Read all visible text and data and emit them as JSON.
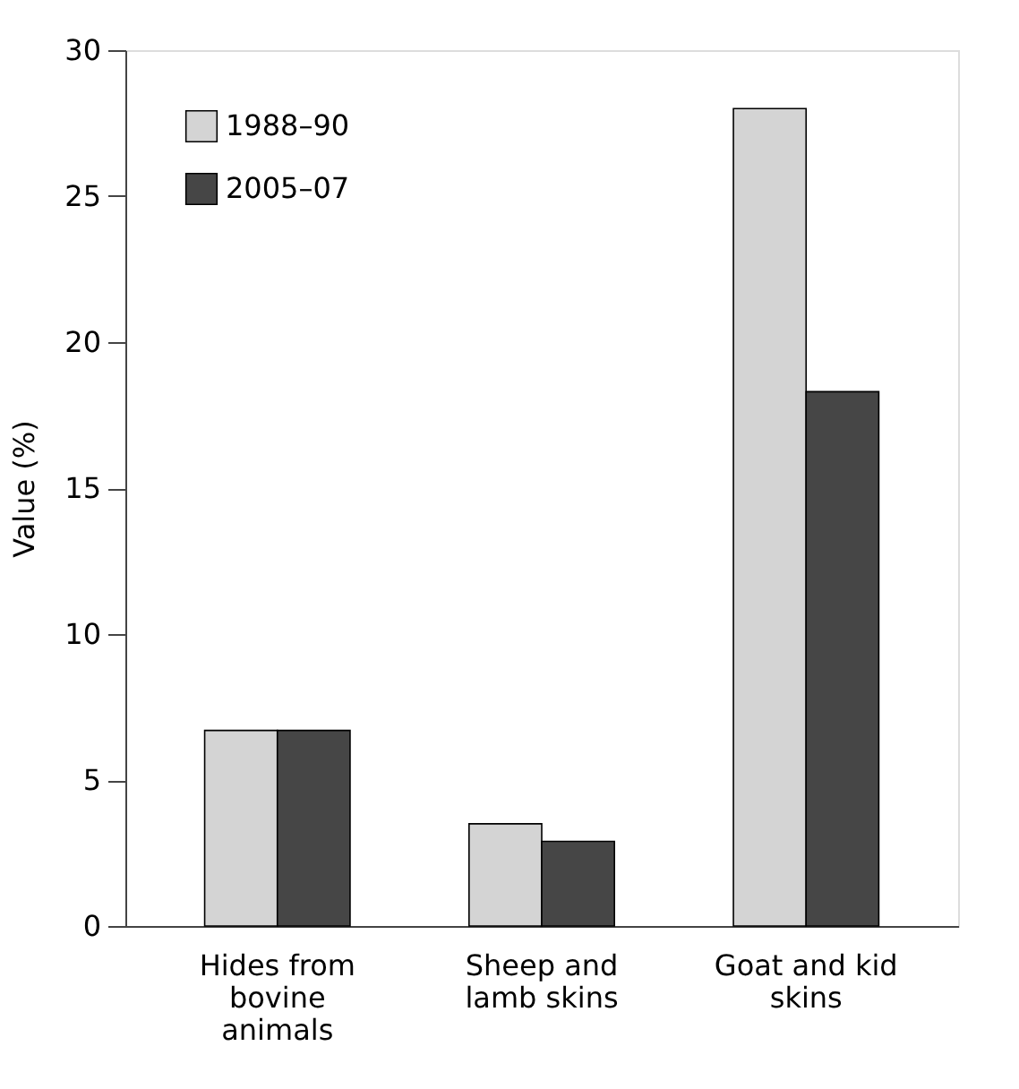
{
  "chart_data": {
    "type": "bar",
    "ylabel": "Value (%)",
    "categories": [
      "Hides from bovine animals",
      "Sheep and lamb skins",
      "Goat and kid skins"
    ],
    "series": [
      {
        "name": "1988–90",
        "color": "#d4d4d4",
        "values": [
          6.7,
          3.5,
          28.0
        ]
      },
      {
        "name": "2005–07",
        "color": "#464646",
        "values": [
          6.7,
          2.9,
          18.3
        ]
      }
    ],
    "ylim": [
      0,
      30
    ],
    "yticks": [
      0,
      5,
      10,
      15,
      20,
      25,
      30
    ],
    "grid": false,
    "legend": "top left"
  }
}
